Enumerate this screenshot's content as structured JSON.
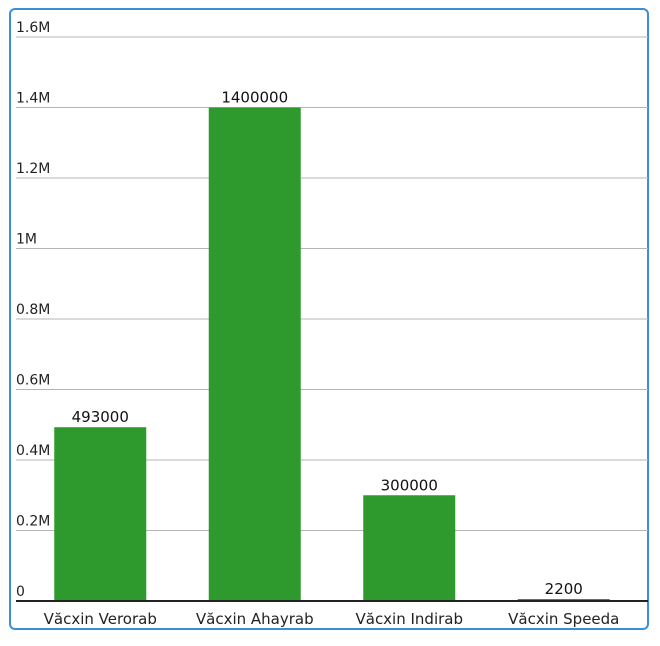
{
  "chart_data": {
    "type": "bar",
    "categories": [
      "Văcxin Verorab",
      "Văcxin Ahayrab",
      "Văcxin Indirab",
      "Văcxin Speeda"
    ],
    "values": [
      493000,
      1400000,
      300000,
      2200
    ],
    "data_labels": [
      "493000",
      "1400000",
      "300000",
      "2200"
    ],
    "ylim": [
      0,
      1600000
    ],
    "yticks": [
      {
        "value": 0,
        "label": "0"
      },
      {
        "value": 200000,
        "label": "0.2M"
      },
      {
        "value": 400000,
        "label": "0.4M"
      },
      {
        "value": 600000,
        "label": "0.6M"
      },
      {
        "value": 800000,
        "label": "0.8M"
      },
      {
        "value": 1000000,
        "label": "1M"
      },
      {
        "value": 1200000,
        "label": "1.2M"
      },
      {
        "value": 1400000,
        "label": "1.4M"
      },
      {
        "value": 1600000,
        "label": "1.6M"
      }
    ],
    "grid": true,
    "bar_color": "#2e9a2e",
    "frame_color": "#3b8fd6"
  }
}
